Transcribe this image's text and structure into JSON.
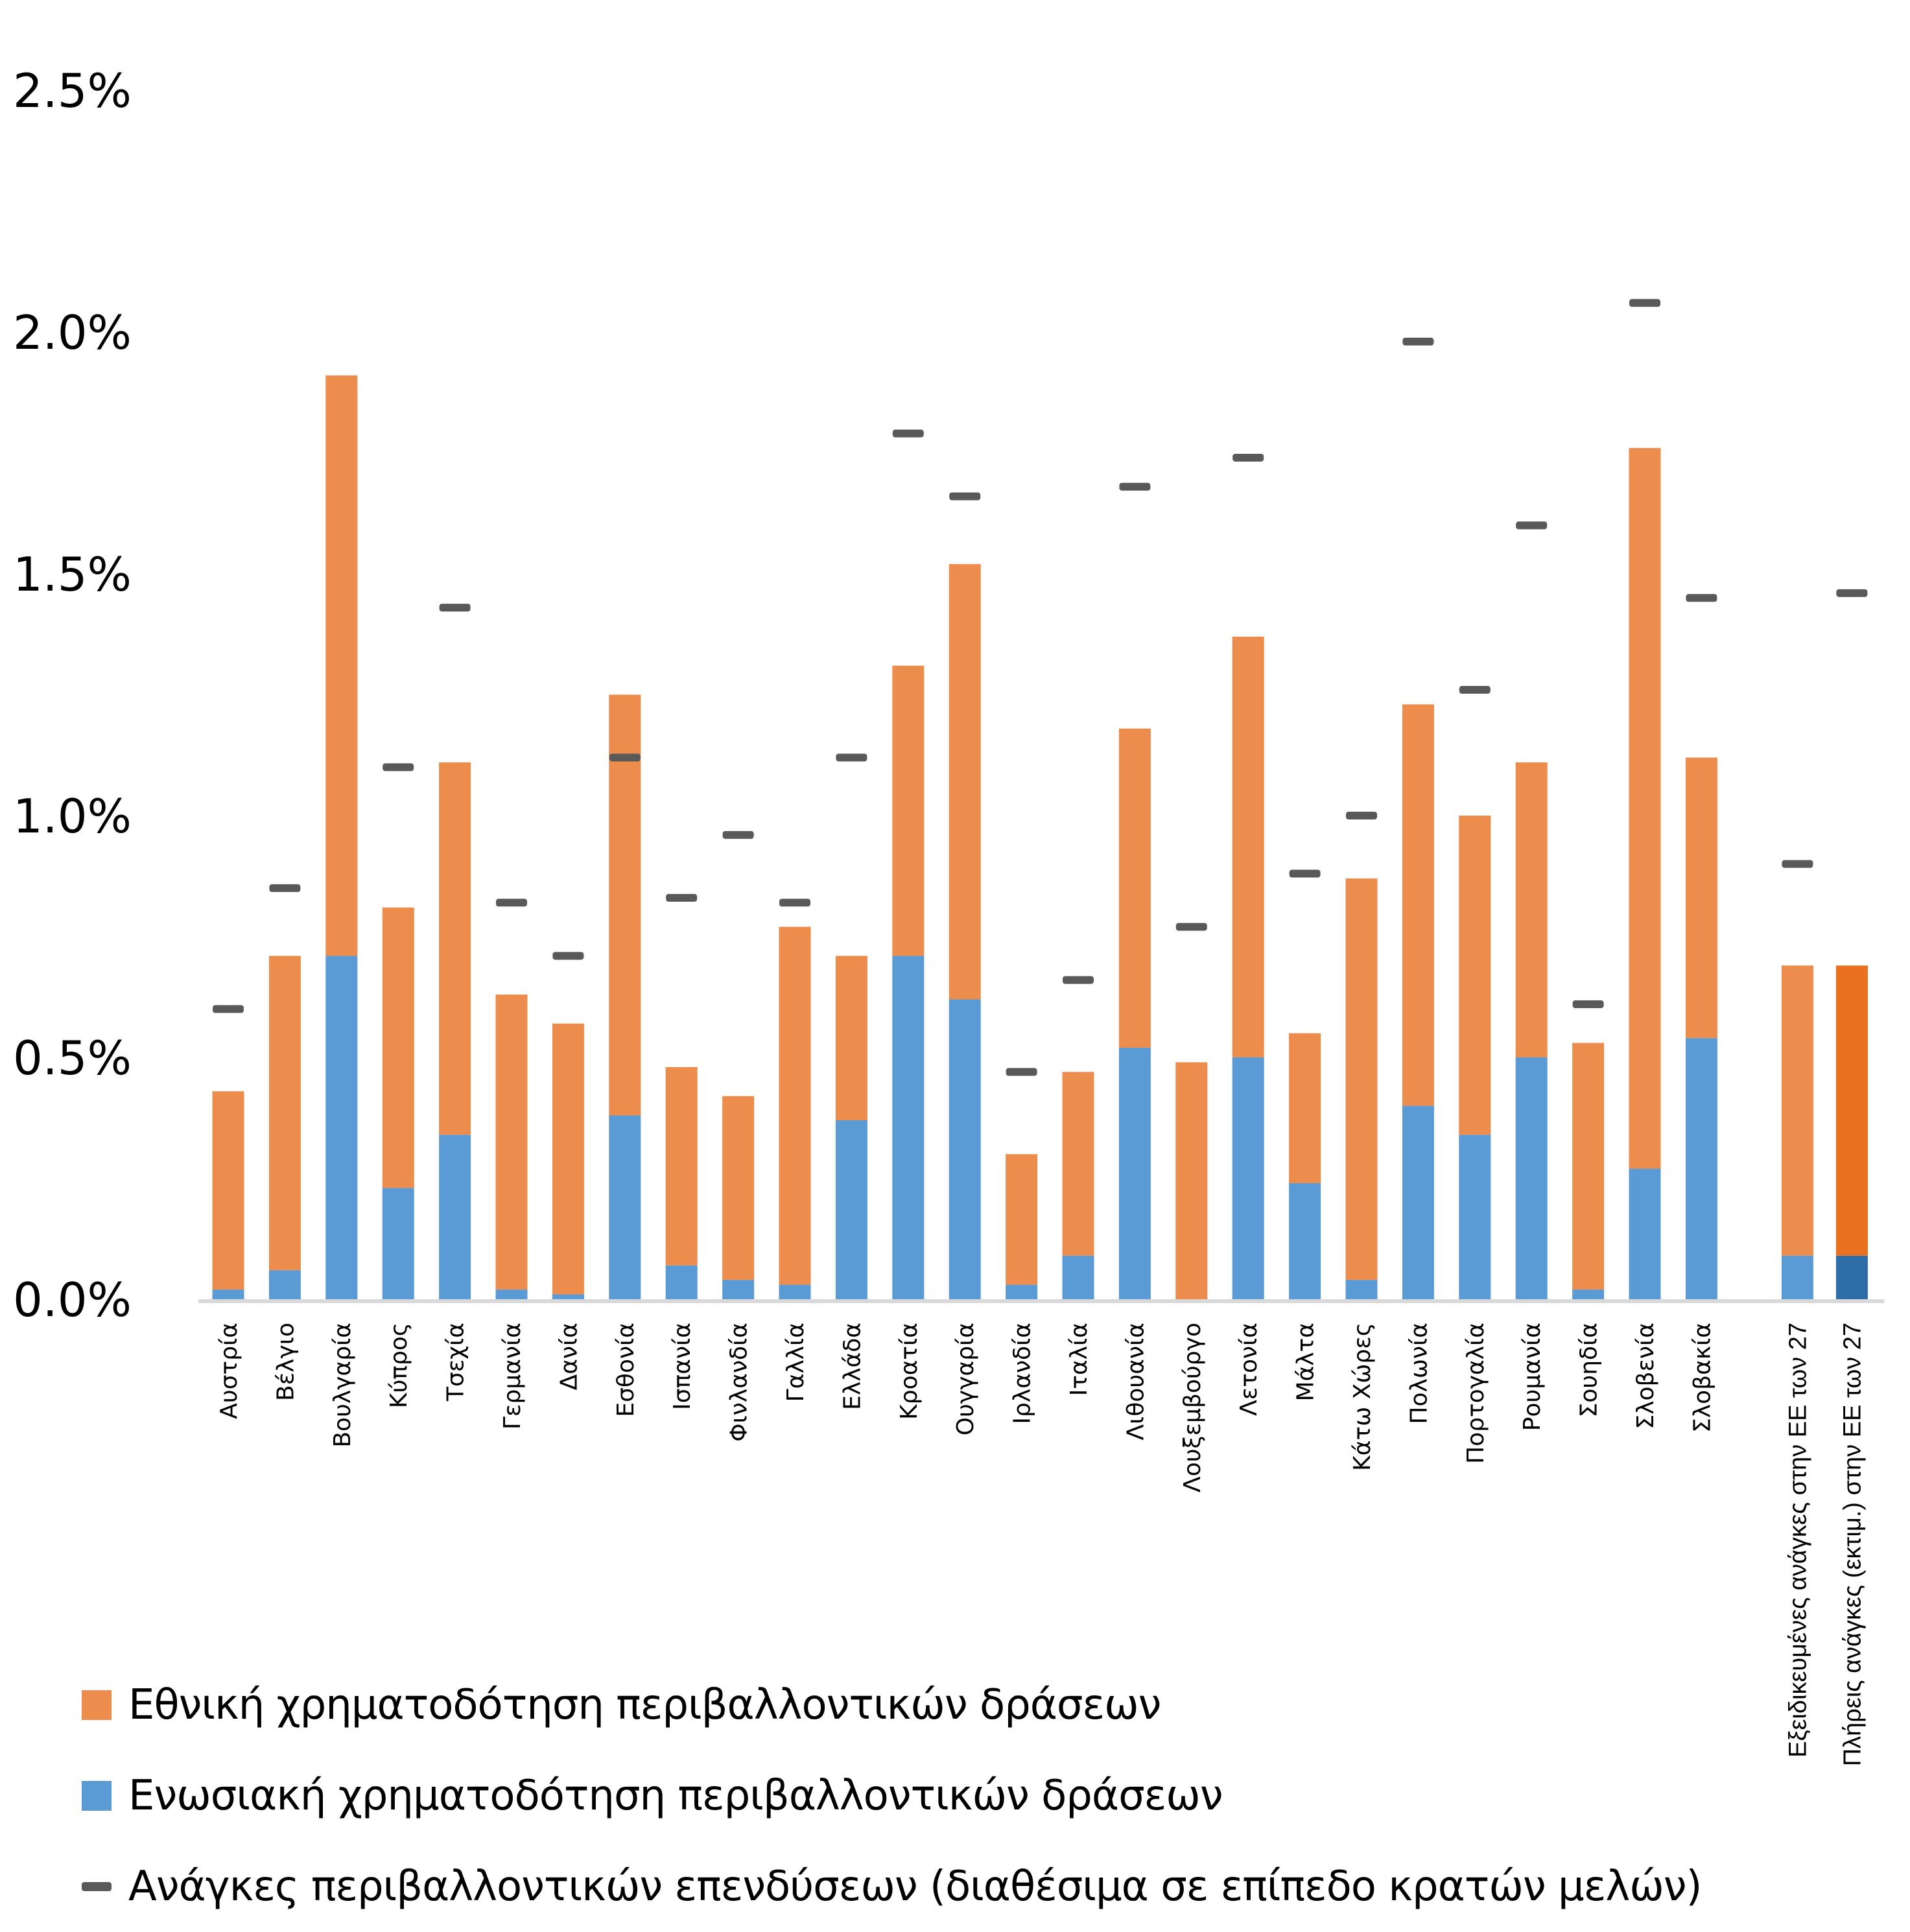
{
  "chart_data": {
    "type": "bar",
    "stacked": true,
    "title": "",
    "xlabel": "",
    "ylabel": "",
    "ylim": [
      0,
      2.5
    ],
    "y_unit": "%",
    "yticks": [
      "0.0%",
      "0.5%",
      "1.0%",
      "1.5%",
      "2.0%",
      "2.5%"
    ],
    "ytick_values": [
      0,
      0.5,
      1.0,
      1.5,
      2.0,
      2.5
    ],
    "grid": false,
    "legend_position": "bottom-left",
    "categories": [
      "Αυστρία",
      "Βέλγιο",
      "Βουλγαρία",
      "Κύπρος",
      "Τσεχία",
      "Γερμανία",
      "Δανία",
      "Εσθονία",
      "Ισπανία",
      "Φινλανδία",
      "Γαλλία",
      "Ελλάδα",
      "Κροατία",
      "Ουγγαρία",
      "Ιρλανδία",
      "Ιταλία",
      "Λιθουανία",
      "Λουξεμβούργο",
      "Λετονία",
      "Μάλτα",
      "Κάτω Χώρες",
      "Πολωνία",
      "Πορτογαλία",
      "Ρουμανία",
      "Σουηδία",
      "Σλοβενία",
      "Σλοβακία",
      "Εξειδικευμένες ανάγκες στην ΕΕ των 27",
      "Πλήρεις ανάγκες (εκτιμ.) στην ΕΕ των 27"
    ],
    "series": [
      {
        "name": "Ενωσιακή χρηματοδότηση περιβαλλοντικών δράσεων",
        "kind": "bar",
        "color": "#5B9BD5",
        "values": [
          0.02,
          0.06,
          0.71,
          0.23,
          0.34,
          0.02,
          0.01,
          0.38,
          0.07,
          0.04,
          0.03,
          0.37,
          0.71,
          0.62,
          0.03,
          0.09,
          0.52,
          0.0,
          0.5,
          0.24,
          0.04,
          0.4,
          0.34,
          0.5,
          0.02,
          0.27,
          0.54,
          0.09,
          0.09
        ]
      },
      {
        "name": "Εθνική χρηματοδότηση περιβαλλοντικών δράσεων",
        "kind": "bar",
        "color": "#ED8D4D",
        "values": [
          0.41,
          0.65,
          1.2,
          0.58,
          0.77,
          0.61,
          0.56,
          0.87,
          0.41,
          0.38,
          0.74,
          0.34,
          0.6,
          0.9,
          0.27,
          0.38,
          0.66,
          0.49,
          0.87,
          0.31,
          0.83,
          0.83,
          0.66,
          0.61,
          0.51,
          1.49,
          0.58,
          0.6,
          0.6
        ]
      },
      {
        "name": "Ανάγκες περιβαλλοντικών επενδύσεων (διαθέσιμα σε επίπεδο κρατών μελών)",
        "kind": "marker",
        "color": "#595959",
        "values": [
          0.6,
          0.85,
          null,
          1.1,
          1.43,
          0.82,
          0.71,
          1.12,
          0.83,
          0.96,
          0.82,
          1.12,
          1.79,
          1.66,
          0.47,
          0.66,
          1.68,
          0.77,
          1.74,
          0.88,
          1.0,
          1.98,
          1.26,
          1.6,
          0.61,
          2.06,
          1.45,
          0.9,
          1.46
        ]
      }
    ],
    "highlight": {
      "category": "Πλήρεις ανάγκες (εκτιμ.) στην ΕΕ των 27",
      "bar_colors": {
        "Ενωσιακή": "#2E6DA8",
        "Εθνική": "#E9711F"
      }
    },
    "legend": [
      {
        "label": "Εθνική χρηματοδότηση περιβαλλοντικών δράσεων",
        "type": "swatch",
        "color": "#ED8D4D"
      },
      {
        "label": "Ενωσιακή χρηματοδότηση περιβαλλοντικών δράσεων",
        "type": "swatch",
        "color": "#5B9BD5"
      },
      {
        "label": "Ανάγκες περιβαλλοντικών επενδύσεων (διαθέσιμα σε επίπεδο κρατών μελών)",
        "type": "line",
        "color": "#595959"
      }
    ],
    "axis_color": "#D9D9D9"
  }
}
